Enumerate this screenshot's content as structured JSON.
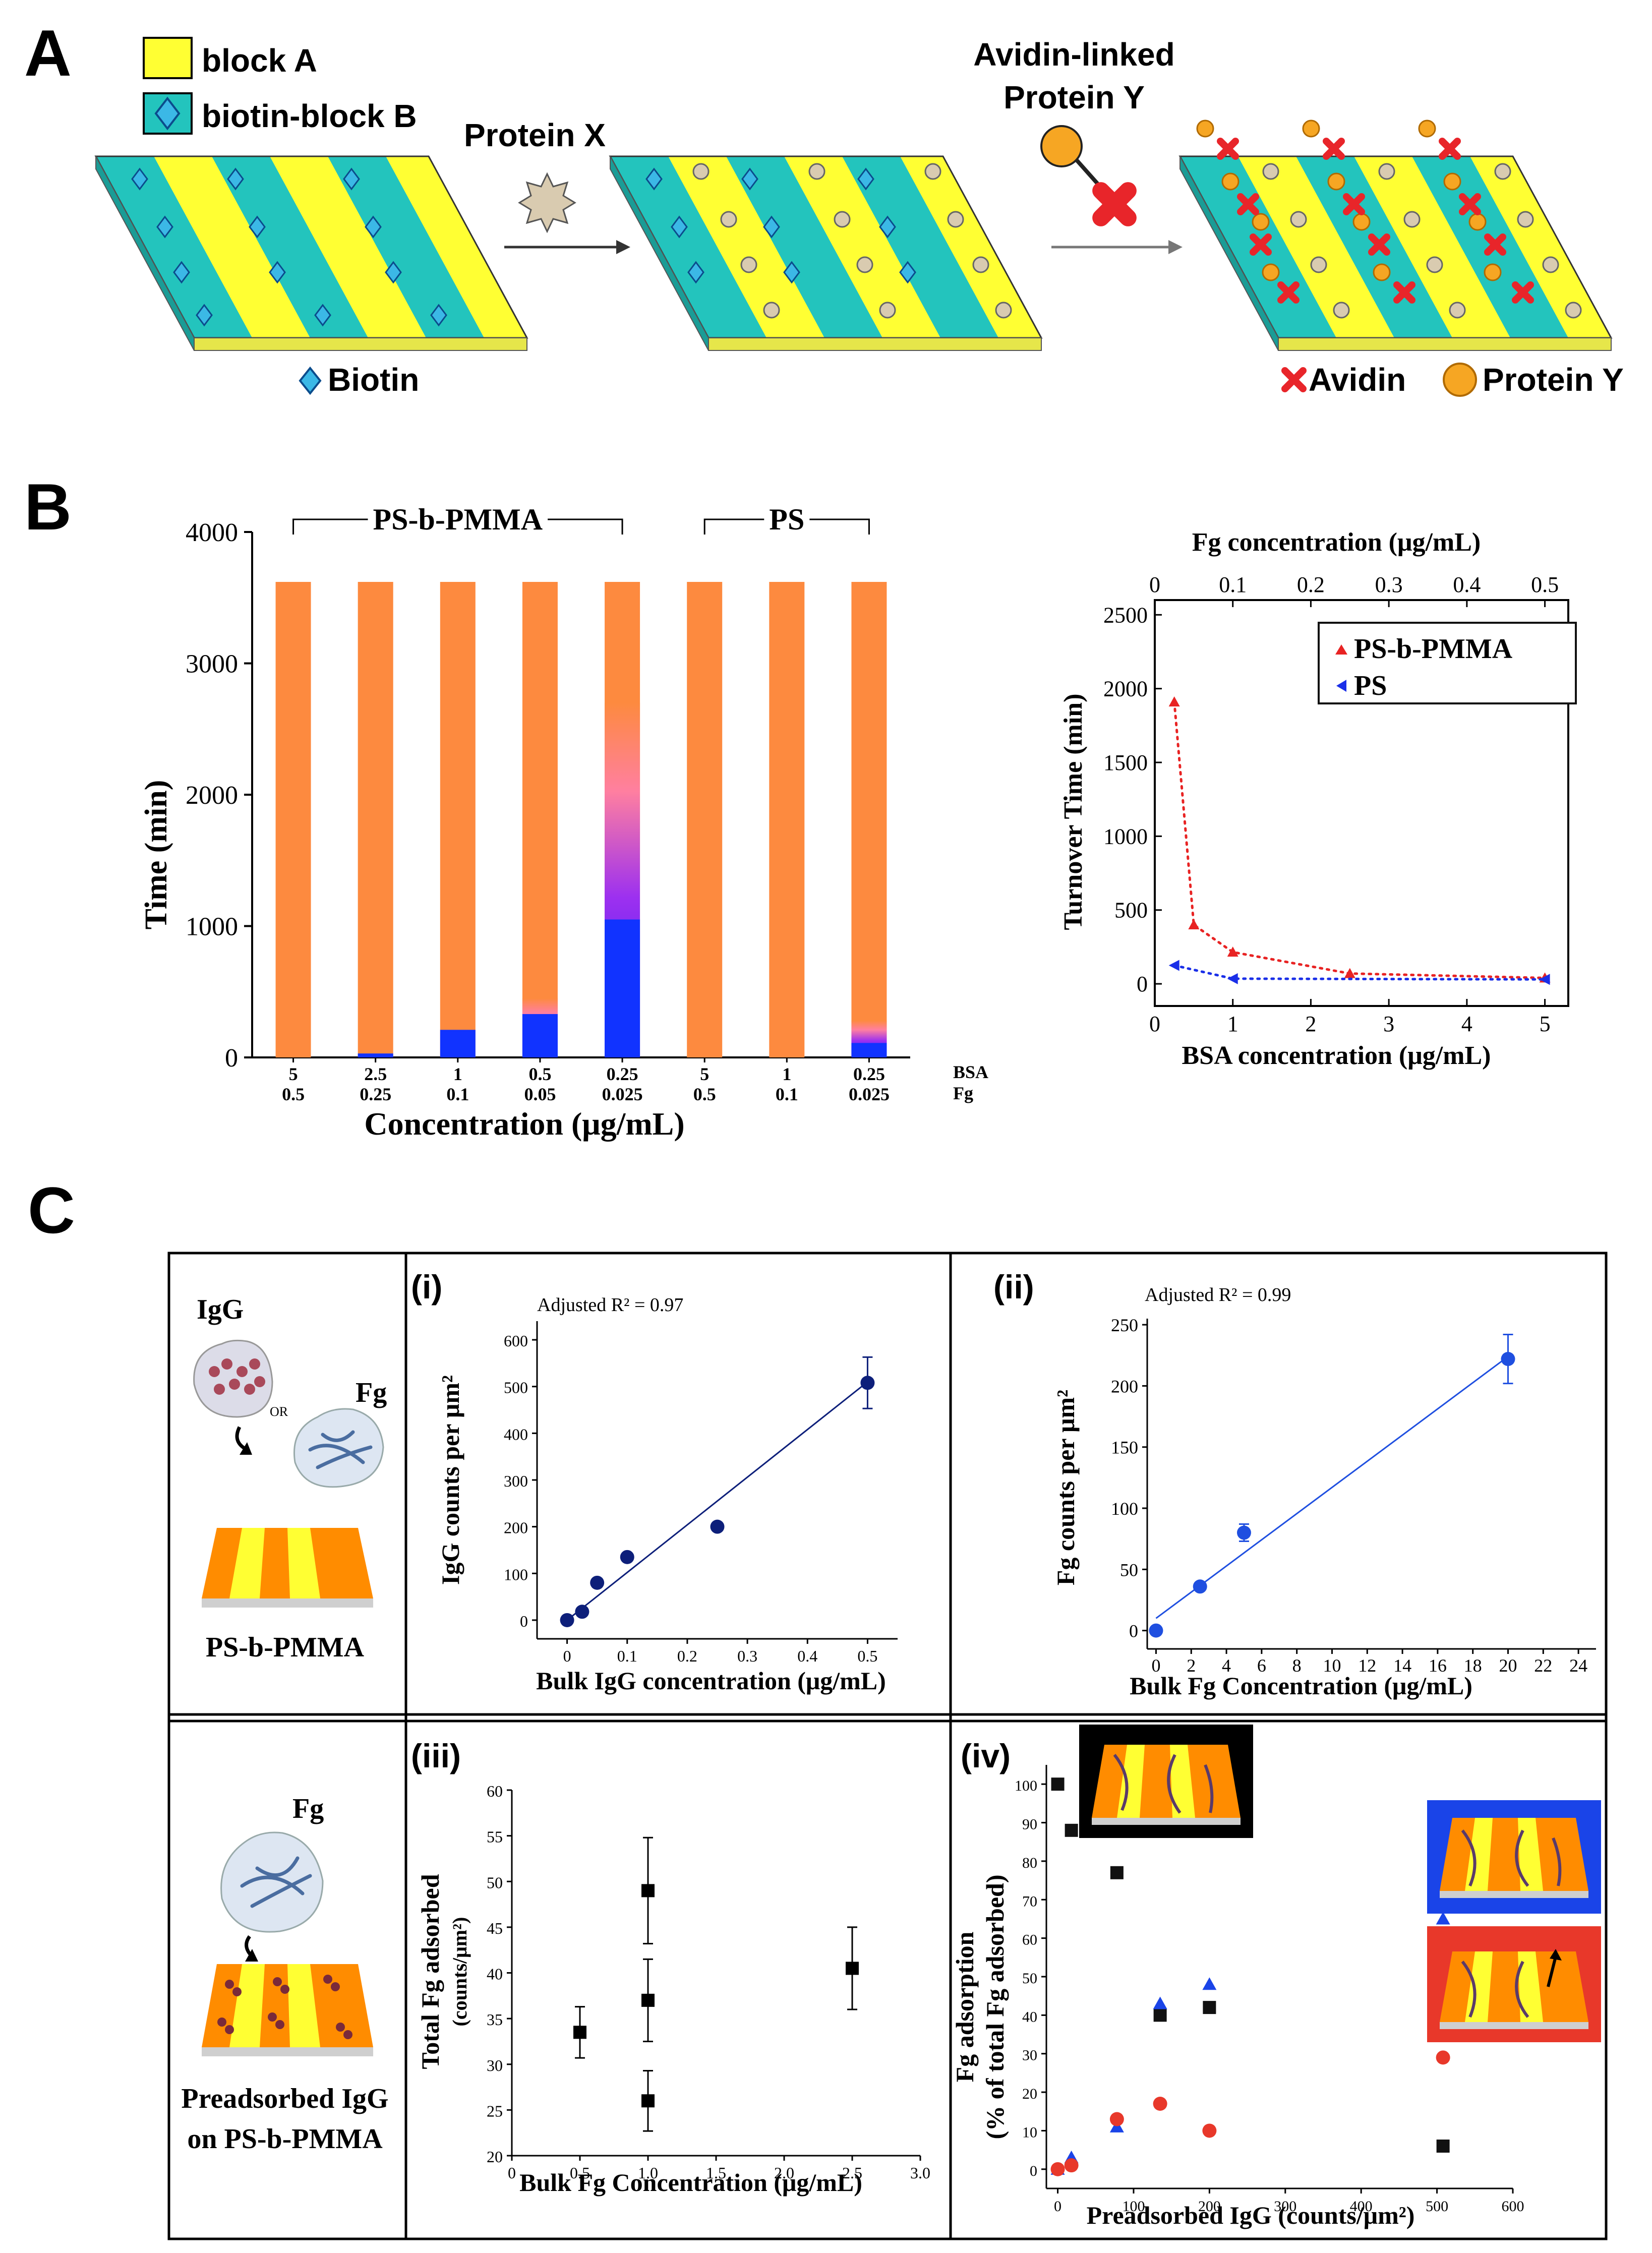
{
  "panels": {
    "a": "A",
    "b": "B",
    "c": "C"
  },
  "panel_a": {
    "legend": {
      "block_a": "block A",
      "block_b": "biotin-block B"
    },
    "step1_label": "Protein X",
    "step2_label_line1": "Avidin-linked",
    "step2_label_line2": "Protein Y",
    "biotin_label": "Biotin",
    "avidin_label": "Avidin",
    "protein_y_label": "Protein Y",
    "colors": {
      "block_a": "#ffff33",
      "block_b": "#23c4bd",
      "avidin": "#e8252a",
      "protein_y": "#f6a623",
      "biotin": "#3bb8e6"
    }
  },
  "chart_data": [
    {
      "type": "bar",
      "id": "B-left",
      "ylabel": "Time (min)",
      "xlabel": "Concentration (μg/mL)",
      "ylim": [
        0,
        4000
      ],
      "yticks": [
        "0",
        "1000",
        "2000",
        "3000",
        "4000"
      ],
      "row_labels": [
        "BSA",
        "Fg"
      ],
      "categories_bsa": [
        "5",
        "2.5",
        "1",
        "0.5",
        "0.25",
        "5",
        "1",
        "0.25"
      ],
      "categories_fg": [
        "0.5",
        "0.25",
        "0.1",
        "0.05",
        "0.025",
        "0.5",
        "0.1",
        "0.025"
      ],
      "groups": [
        {
          "label": "PS-b-PMMA"
        },
        {
          "label": "PS"
        }
      ],
      "total": [
        3620,
        3620,
        3620,
        3620,
        3620,
        3620,
        3620,
        3620
      ],
      "blue": [
        0,
        30,
        210,
        330,
        1050,
        0,
        0,
        110
      ],
      "gradient_top": [
        0,
        0,
        0,
        450,
        2700,
        0,
        0,
        280
      ],
      "colors": {
        "orange": "#fd8a3f",
        "blue": "#1133ff",
        "purple": "#9c30f0"
      }
    },
    {
      "type": "scatter",
      "id": "B-right",
      "xlabel_bottom": "BSA concentration (μg/mL)",
      "xlabel_top": "Fg concentration (μg/mL)",
      "ylabel": "Turnover Time (min)",
      "xlim": [
        0,
        5.3
      ],
      "ylim": [
        -150,
        2600
      ],
      "xticks_bottom": [
        "0",
        "1",
        "2",
        "3",
        "4",
        "5"
      ],
      "xticks_top": [
        "0",
        "0.1",
        "0.2",
        "0.3",
        "0.4",
        "0.5"
      ],
      "yticks": [
        "0",
        "500",
        "1000",
        "1500",
        "2000",
        "2500"
      ],
      "series": [
        {
          "name": "PS-b-PMMA",
          "color": "#e82323",
          "x": [
            0.25,
            0.5,
            1,
            2.5,
            5
          ],
          "y": [
            1910,
            400,
            215,
            70,
            40
          ]
        },
        {
          "name": "PS",
          "color": "#1a2fe8",
          "x": [
            0.25,
            1,
            5
          ],
          "y": [
            125,
            35,
            30
          ]
        }
      ]
    },
    {
      "type": "scatter",
      "id": "C-i",
      "label": "(i)",
      "annotation": "Adjusted R² = 0.97",
      "xlabel": "Bulk IgG concentration (μg/mL)",
      "ylabel": "IgG counts per μm²",
      "xlim": [
        -0.05,
        0.55
      ],
      "ylim": [
        -40,
        640
      ],
      "xticks": [
        "0",
        "0.1",
        "0.2",
        "0.3",
        "0.4",
        "0.5"
      ],
      "yticks": [
        "0",
        "100",
        "200",
        "300",
        "400",
        "500",
        "600"
      ],
      "x": [
        0,
        0.025,
        0.05,
        0.1,
        0.25,
        0.5
      ],
      "y": [
        0,
        18,
        80,
        135,
        200,
        508
      ],
      "err": [
        0,
        0,
        0,
        0,
        0,
        55
      ],
      "fit": [
        [
          0,
          0
        ],
        [
          0.5,
          510
        ]
      ],
      "color": "#0d1f7a"
    },
    {
      "type": "scatter",
      "id": "C-ii",
      "label": "(ii)",
      "annotation": "Adjusted R² = 0.99",
      "xlabel": "Bulk Fg Concentration (μg/mL)",
      "ylabel": "Fg counts per μm²",
      "xlim": [
        -0.5,
        25
      ],
      "ylim": [
        -15,
        255
      ],
      "xticks": [
        "0",
        "2",
        "4",
        "6",
        "8",
        "10",
        "12",
        "14",
        "16",
        "18",
        "20",
        "22",
        "24"
      ],
      "yticks": [
        "0",
        "50",
        "100",
        "150",
        "200",
        "250"
      ],
      "x": [
        0,
        2.5,
        5,
        20
      ],
      "y": [
        0,
        36,
        80,
        222
      ],
      "err": [
        0,
        3,
        7,
        20
      ],
      "fit": [
        [
          0,
          10
        ],
        [
          20,
          224
        ]
      ],
      "color": "#1f4fe0"
    },
    {
      "type": "scatter",
      "id": "C-iii",
      "label": "(iii)",
      "xlabel": "Bulk Fg Concentration (μg/mL)",
      "ylabel": "Total Fg adsorbed",
      "ylabel2": "(counts/μm²)",
      "xlim": [
        0,
        3.0
      ],
      "ylim": [
        20,
        60
      ],
      "xticks": [
        "0",
        "0.5",
        "1.0",
        "1.5",
        "2.0",
        "2.5",
        "3.0"
      ],
      "yticks": [
        "20",
        "25",
        "30",
        "35",
        "40",
        "45",
        "50",
        "55",
        "60"
      ],
      "x": [
        0.5,
        1.0,
        1.0,
        1.0,
        2.5
      ],
      "y": [
        33.5,
        49,
        37,
        26,
        40.5
      ],
      "err": [
        2.8,
        5.8,
        4.5,
        3.3,
        4.5
      ]
    },
    {
      "type": "scatter",
      "id": "C-iv",
      "label": "(iv)",
      "xlabel": "Preadsorbed IgG (counts/μm²)",
      "ylabel": "Fg adsorption",
      "ylabel2": "(% of total Fg adsorbed)",
      "xlim": [
        -15,
        600
      ],
      "ylim": [
        -5,
        105
      ],
      "xticks": [
        "0",
        "100",
        "200",
        "300",
        "400",
        "500",
        "600"
      ],
      "yticks": [
        "0",
        "10",
        "20",
        "30",
        "40",
        "50",
        "60",
        "70",
        "80",
        "90",
        "100"
      ],
      "series": [
        {
          "name": "black",
          "color": "#111111",
          "x": [
            0,
            18,
            78,
            135,
            200,
            508
          ],
          "y": [
            100,
            88,
            77,
            40,
            42,
            6
          ]
        },
        {
          "name": "blue",
          "color": "#1a44e8",
          "x": [
            0,
            18,
            78,
            135,
            200,
            508
          ],
          "y": [
            0,
            3,
            11,
            43,
            48,
            65
          ]
        },
        {
          "name": "red",
          "color": "#e8382a",
          "x": [
            0,
            18,
            78,
            135,
            200,
            508
          ],
          "y": [
            0,
            1,
            13,
            17,
            10,
            29
          ]
        }
      ]
    }
  ],
  "panel_c": {
    "igg": "IgG",
    "or": "OR",
    "fg": "Fg",
    "surface1": "PS-b-PMMA",
    "fg2": "Fg",
    "surface2_line1": "Preadsorbed IgG",
    "surface2_line2": "on PS-b-PMMA"
  }
}
